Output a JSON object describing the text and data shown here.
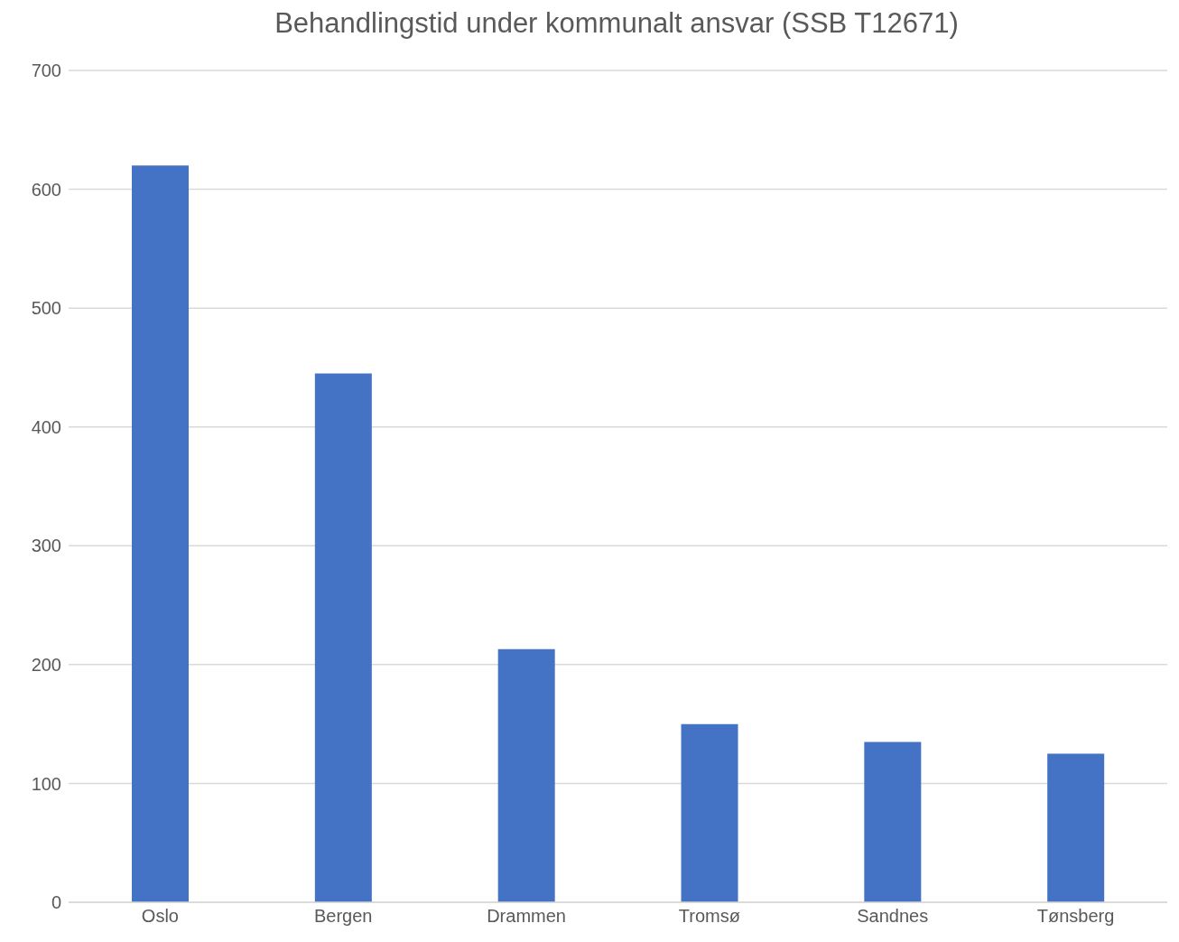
{
  "chart_data": {
    "type": "bar",
    "title": "Behandlingstid under kommunalt ansvar (SSB T12671)",
    "categories": [
      "Oslo",
      "Bergen",
      "Drammen",
      "Tromsø",
      "Sandnes",
      "Tønsberg"
    ],
    "values": [
      620,
      445,
      213,
      150,
      135,
      125
    ],
    "color": "#4472c4",
    "ylim": [
      0,
      700
    ],
    "yticks": [
      0,
      100,
      200,
      300,
      400,
      500,
      600,
      700
    ],
    "grid": "y"
  }
}
